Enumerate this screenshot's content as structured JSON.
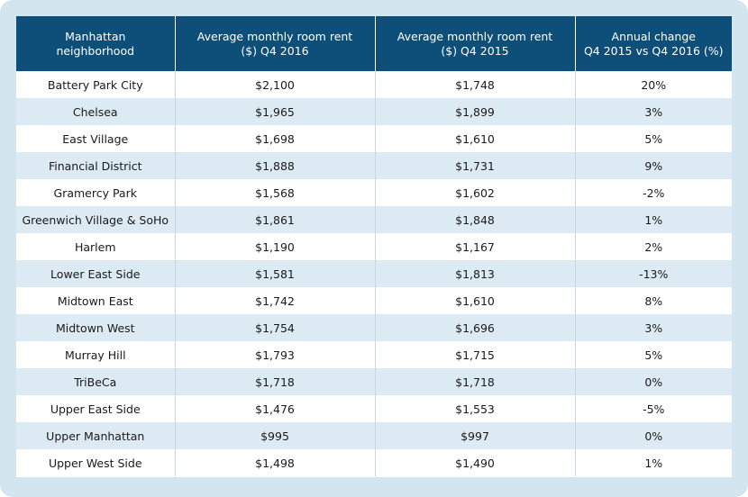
{
  "columns": [
    {
      "line1": "Manhattan",
      "line2": "neighborhood"
    },
    {
      "line1": "Average monthly room rent",
      "line2": "($) Q4 2016"
    },
    {
      "line1": "Average monthly room rent",
      "line2": "($) Q4 2015"
    },
    {
      "line1": "Annual change",
      "line2": "Q4 2015 vs Q4 2016 (%)"
    }
  ],
  "rows": [
    {
      "neighborhood": "Battery Park City",
      "rent_2016": "$2,100",
      "rent_2015": "$1,748",
      "change": "20%"
    },
    {
      "neighborhood": "Chelsea",
      "rent_2016": "$1,965",
      "rent_2015": "$1,899",
      "change": "3%"
    },
    {
      "neighborhood": "East Village",
      "rent_2016": "$1,698",
      "rent_2015": "$1,610",
      "change": "5%"
    },
    {
      "neighborhood": "Financial District",
      "rent_2016": "$1,888",
      "rent_2015": "$1,731",
      "change": "9%"
    },
    {
      "neighborhood": "Gramercy Park",
      "rent_2016": "$1,568",
      "rent_2015": "$1,602",
      "change": "-2%"
    },
    {
      "neighborhood": "Greenwich Village & SoHo",
      "rent_2016": "$1,861",
      "rent_2015": "$1,848",
      "change": "1%"
    },
    {
      "neighborhood": "Harlem",
      "rent_2016": "$1,190",
      "rent_2015": "$1,167",
      "change": "2%"
    },
    {
      "neighborhood": "Lower East Side",
      "rent_2016": "$1,581",
      "rent_2015": "$1,813",
      "change": "-13%"
    },
    {
      "neighborhood": "Midtown East",
      "rent_2016": "$1,742",
      "rent_2015": "$1,610",
      "change": "8%"
    },
    {
      "neighborhood": "Midtown West",
      "rent_2016": "$1,754",
      "rent_2015": "$1,696",
      "change": "3%"
    },
    {
      "neighborhood": "Murray Hill",
      "rent_2016": "$1,793",
      "rent_2015": "$1,715",
      "change": "5%"
    },
    {
      "neighborhood": "TriBeCa",
      "rent_2016": "$1,718",
      "rent_2015": "$1,718",
      "change": "0%"
    },
    {
      "neighborhood": "Upper East Side",
      "rent_2016": "$1,476",
      "rent_2015": "$1,553",
      "change": "-5%"
    },
    {
      "neighborhood": "Upper Manhattan",
      "rent_2016": "$995",
      "rent_2015": "$997",
      "change": "0%"
    },
    {
      "neighborhood": "Upper West Side",
      "rent_2016": "$1,498",
      "rent_2015": "$1,490",
      "change": "1%"
    }
  ],
  "colors": {
    "header_bg": "#0d4f78",
    "stripe": "#dceaf3",
    "frame": "#d3e5ef"
  }
}
